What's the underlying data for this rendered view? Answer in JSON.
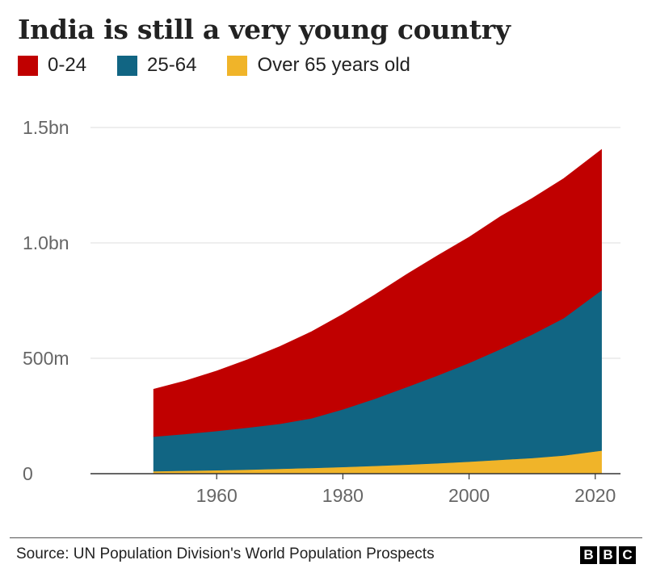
{
  "title": "India is still a very young country",
  "legend": [
    {
      "label": "0-24",
      "color": "#c00000"
    },
    {
      "label": "25-64",
      "color": "#116583"
    },
    {
      "label": "Over 65 years old",
      "color": "#f0b429"
    }
  ],
  "source": "Source: UN Population Division's World Population Prospects",
  "logo": [
    "B",
    "B",
    "C"
  ],
  "chart_data": {
    "type": "area",
    "stacked": true,
    "x": [
      1950,
      1955,
      1960,
      1965,
      1970,
      1975,
      1980,
      1985,
      1990,
      1995,
      2000,
      2005,
      2010,
      2015,
      2021
    ],
    "series": [
      {
        "name": "Over 65 years old",
        "color": "#f0b429",
        "values": [
          0.011,
          0.013,
          0.015,
          0.018,
          0.021,
          0.025,
          0.029,
          0.034,
          0.039,
          0.045,
          0.052,
          0.06,
          0.068,
          0.079,
          0.1
        ]
      },
      {
        "name": "25-64",
        "color": "#116583",
        "values": [
          0.15,
          0.159,
          0.17,
          0.182,
          0.195,
          0.215,
          0.25,
          0.29,
          0.335,
          0.38,
          0.428,
          0.48,
          0.535,
          0.595,
          0.695
        ]
      },
      {
        "name": "0-24",
        "color": "#c00000",
        "values": [
          0.205,
          0.23,
          0.26,
          0.295,
          0.335,
          0.375,
          0.412,
          0.45,
          0.488,
          0.52,
          0.545,
          0.575,
          0.59,
          0.605,
          0.61
        ]
      }
    ],
    "xticks": [
      1960,
      1980,
      2000,
      2020
    ],
    "yticks": [
      {
        "value": 0,
        "label": "0"
      },
      {
        "value": 0.5,
        "label": "500m"
      },
      {
        "value": 1.0,
        "label": "1.0bn"
      },
      {
        "value": 1.5,
        "label": "1.5bn"
      }
    ],
    "ylim": [
      0,
      1.5
    ],
    "xlim": [
      1940,
      2024
    ],
    "grid": true
  }
}
